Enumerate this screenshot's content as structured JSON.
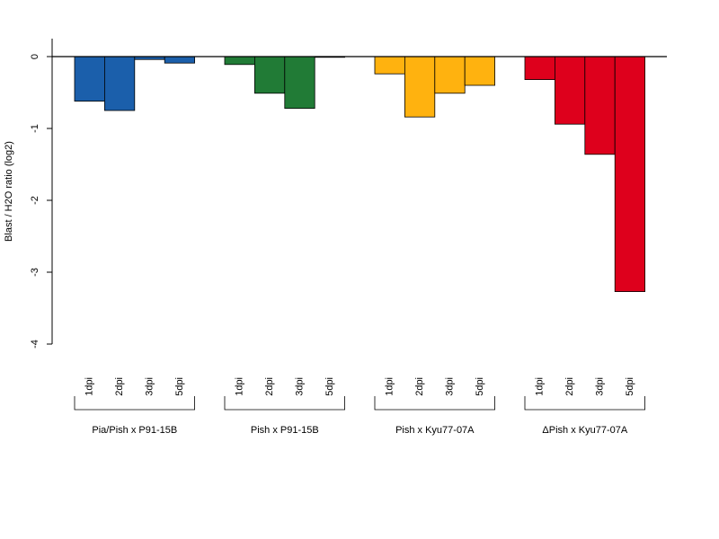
{
  "chart_data": {
    "type": "bar",
    "ylabel": "Blast / H2O ratio (log2)",
    "ylim": [
      -4,
      0.25
    ],
    "yticks": [
      0,
      -1,
      -2,
      -3,
      -4
    ],
    "grid": false,
    "baseline": 0,
    "groups": [
      {
        "name": "Pia/Pish x P91-15B",
        "color": "#1b5fab",
        "categories": [
          "1dpi",
          "2dpi",
          "3dpi",
          "5dpi"
        ],
        "values": [
          -0.62,
          -0.75,
          -0.04,
          -0.09
        ]
      },
      {
        "name": "Pish x P91-15B",
        "color": "#217b36",
        "categories": [
          "1dpi",
          "2dpi",
          "3dpi",
          "5dpi"
        ],
        "values": [
          -0.11,
          -0.51,
          -0.72,
          -0.01
        ]
      },
      {
        "name": "Pish x Kyu77-07A",
        "color": "#ffb20f",
        "categories": [
          "1dpi",
          "2dpi",
          "3dpi",
          "5dpi"
        ],
        "values": [
          -0.24,
          -0.84,
          -0.51,
          -0.4
        ]
      },
      {
        "name": "ΔPish x Kyu77-07A",
        "color": "#de001c",
        "categories": [
          "1dpi",
          "2dpi",
          "3dpi",
          "5dpi"
        ],
        "values": [
          -0.32,
          -0.94,
          -1.36,
          -3.27
        ]
      }
    ]
  }
}
